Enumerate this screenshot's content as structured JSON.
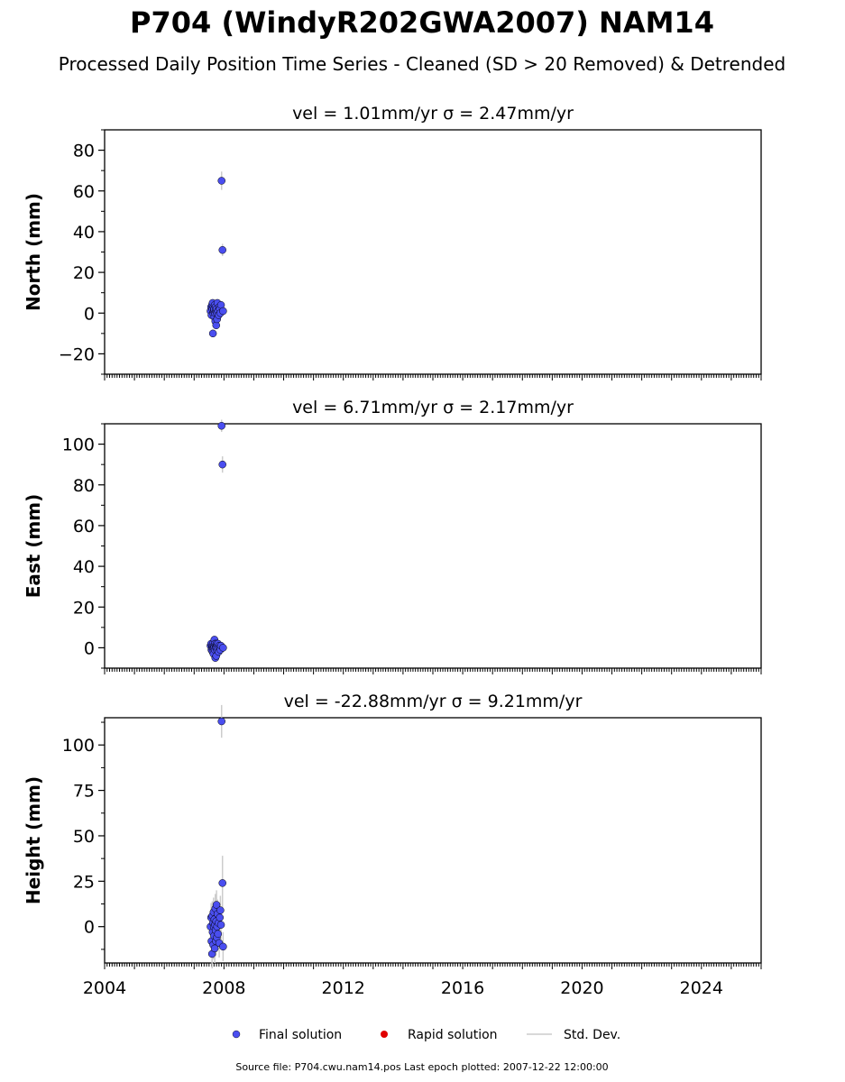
{
  "title": "P704 (WindyR202GWA2007) NAM14",
  "subtitle": "Processed Daily Position Time Series - Cleaned (SD > 20 Removed) & Detrended",
  "legend": {
    "final": "Final solution",
    "rapid": "Rapid solution",
    "std": "Std. Dev."
  },
  "footer": "Source file: P704.cwu.nam14.pos  Last epoch plotted: 2007-12-22 12:00:00",
  "colors": {
    "final": "#4a4ef0",
    "rapid": "#e00000",
    "std": "#cccccc"
  },
  "chart_data": [
    {
      "type": "scatter",
      "title": "vel = 1.01mm/yr   σ = 2.47mm/yr",
      "ylabel": "North (mm)",
      "xlim": [
        2004,
        2026
      ],
      "ylim": [
        -30,
        90
      ],
      "yticks": [
        80,
        60,
        40,
        20,
        0,
        -20
      ],
      "ytick_labels": [
        "80",
        "60",
        "40",
        "20",
        "0",
        "−20"
      ],
      "xticks": [
        2004,
        2008,
        2012,
        2016,
        2020,
        2024
      ],
      "xtick_labels": [],
      "series": [
        {
          "x": [
            2007.55,
            2007.57,
            2007.58,
            2007.6,
            2007.61,
            2007.62,
            2007.63,
            2007.64,
            2007.65,
            2007.66,
            2007.67,
            2007.68,
            2007.69,
            2007.7,
            2007.71,
            2007.72,
            2007.73,
            2007.74,
            2007.75,
            2007.76,
            2007.77,
            2007.78,
            2007.8,
            2007.82,
            2007.84,
            2007.86,
            2007.88,
            2007.9,
            2007.92,
            2007.95,
            2007.97
          ],
          "y": [
            1,
            3,
            -1,
            4,
            2,
            5,
            -10,
            0,
            3,
            1,
            2,
            -2,
            4,
            0,
            -4,
            3,
            1,
            -6,
            2,
            0,
            -3,
            5,
            1,
            -1,
            3,
            2,
            0,
            4,
            65,
            31,
            1
          ],
          "err": [
            1.5,
            1.5,
            1.5,
            1.5,
            1.5,
            1.5,
            1.5,
            1.5,
            1.5,
            1.5,
            1.5,
            1.5,
            1.5,
            1.5,
            1.5,
            1.5,
            1.5,
            1.5,
            1.5,
            1.5,
            1.5,
            1.5,
            1.5,
            1.5,
            1.5,
            1.5,
            1.5,
            1.5,
            4.5,
            3,
            1.5
          ]
        }
      ]
    },
    {
      "type": "scatter",
      "title": "vel = 6.71mm/yr   σ = 2.17mm/yr",
      "ylabel": "East (mm)",
      "xlim": [
        2004,
        2026
      ],
      "ylim": [
        -10,
        110
      ],
      "yticks": [
        100,
        80,
        60,
        40,
        20,
        0
      ],
      "ytick_labels": [
        "100",
        "80",
        "60",
        "40",
        "20",
        "0"
      ],
      "xticks": [
        2004,
        2008,
        2012,
        2016,
        2020,
        2024
      ],
      "xtick_labels": [],
      "series": [
        {
          "x": [
            2007.55,
            2007.57,
            2007.58,
            2007.6,
            2007.61,
            2007.62,
            2007.63,
            2007.64,
            2007.65,
            2007.66,
            2007.67,
            2007.68,
            2007.69,
            2007.7,
            2007.71,
            2007.72,
            2007.73,
            2007.74,
            2007.75,
            2007.76,
            2007.77,
            2007.78,
            2007.8,
            2007.82,
            2007.84,
            2007.86,
            2007.88,
            2007.9,
            2007.92,
            2007.95,
            2007.97
          ],
          "y": [
            1,
            2,
            -1,
            0,
            1,
            -2,
            2,
            0,
            -3,
            1,
            0,
            4,
            -1,
            2,
            -5,
            1,
            0,
            -4,
            2,
            -1,
            1,
            0,
            2,
            -2,
            1,
            0,
            -1,
            1,
            109,
            90,
            0
          ],
          "err": [
            1.5,
            1.5,
            1.5,
            1.5,
            1.5,
            1.5,
            1.5,
            1.5,
            1.5,
            1.5,
            1.5,
            1.5,
            1.5,
            1.5,
            1.5,
            1.5,
            1.5,
            1.5,
            1.5,
            1.5,
            1.5,
            1.5,
            1.5,
            1.5,
            1.5,
            1.5,
            1.5,
            1.5,
            3,
            4,
            1.5
          ]
        }
      ]
    },
    {
      "type": "scatter",
      "title": "vel = -22.88mm/yr   σ = 9.21mm/yr",
      "ylabel": "Height (mm)",
      "xlim": [
        2004,
        2026
      ],
      "ylim": [
        -20,
        115
      ],
      "yticks": [
        100,
        75,
        50,
        25,
        0
      ],
      "ytick_labels": [
        "100",
        "75",
        "50",
        "25",
        "0"
      ],
      "xticks": [
        2004,
        2008,
        2012,
        2016,
        2020,
        2024
      ],
      "xtick_labels": [
        "2004",
        "2008",
        "2012",
        "2016",
        "2020",
        "2024"
      ],
      "series": [
        {
          "x": [
            2007.55,
            2007.57,
            2007.58,
            2007.6,
            2007.61,
            2007.62,
            2007.63,
            2007.64,
            2007.65,
            2007.66,
            2007.67,
            2007.68,
            2007.69,
            2007.7,
            2007.71,
            2007.72,
            2007.73,
            2007.74,
            2007.75,
            2007.76,
            2007.77,
            2007.78,
            2007.8,
            2007.82,
            2007.84,
            2007.86,
            2007.88,
            2007.9,
            2007.92,
            2007.95,
            2007.97
          ],
          "y": [
            0,
            5,
            -8,
            -15,
            6,
            -3,
            2,
            -10,
            8,
            0,
            -5,
            4,
            -12,
            1,
            10,
            -2,
            -8,
            3,
            12,
            -6,
            0,
            7,
            -4,
            2,
            -9,
            5,
            9,
            1,
            113,
            24,
            -11
          ],
          "err": [
            8,
            8,
            8,
            8,
            8,
            8,
            8,
            8,
            8,
            8,
            8,
            8,
            8,
            8,
            8,
            8,
            8,
            8,
            8,
            8,
            8,
            8,
            8,
            8,
            8,
            8,
            8,
            8,
            9,
            15,
            8
          ]
        }
      ]
    }
  ]
}
